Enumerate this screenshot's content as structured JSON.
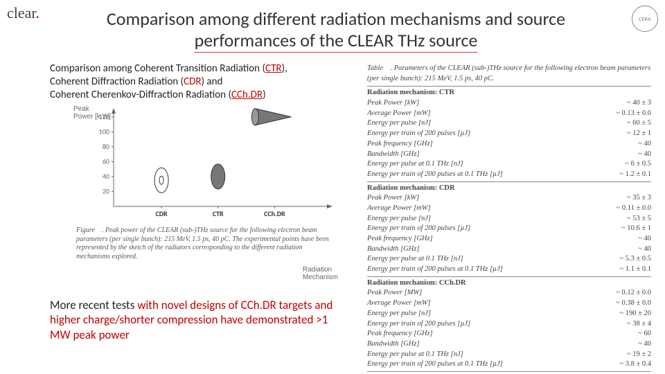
{
  "logos": {
    "clear": "clear",
    "cern": "CERN"
  },
  "title_l1": "Comparison among different radiation mechanisms and source",
  "title_l2": "performances of the CLEAR THz source",
  "desc": {
    "p1a": "Comparison among Coherent Transition Radiation (",
    "p1b": "CTR",
    "p1c": "),",
    "p2a": "Coherent Diffraction Radiation (",
    "p2b": "CDR",
    "p2c": ") and",
    "p3a": "Coherent Cherenkov-Diffraction Radiation (",
    "p3b": "CCh.DR",
    "p3c": ")"
  },
  "chart": {
    "type": "categorical-marker",
    "yaxis_label": "Peak\nPower [k.W]",
    "xaxis_label": "Radiation\nMechanism",
    "categories": [
      "CDR",
      "CTR",
      "CCh.DR"
    ],
    "yticks": [
      20,
      40,
      60,
      80,
      100,
      120
    ],
    "ylim": [
      0,
      130
    ],
    "values": [
      35,
      40,
      120
    ],
    "errors": [
      3,
      3,
      3
    ],
    "marker_color": "#777",
    "marker_edge": "#333",
    "axis_color": "#666",
    "grid_color": "#ddd",
    "text_color": "#666",
    "tick_fontsize": 10
  },
  "chart_caption": "Figure . Peak power of the CLEAR (sub-)THz source for the following electron beam parameters (per single bunch): 215 MeV, 1.5 ps, 40 pC. The experimental points have been represented by the sketch of the radiators corresponding to the different radiation mechanisms explored.",
  "note": {
    "a": "More recent tests ",
    "b": "with novel designs of CCh.DR targets and higher charge/shorter compression have demonstrated >1 MW peak power"
  },
  "table": {
    "caption": "Table . Parameters of the CLEAR (sub-)THz source for the following electron beam parameters (per single bunch): 215 MeV, 1.5 ps, 40 pC.",
    "sections": [
      {
        "head": "Radiation mechanism: CTR",
        "rows": [
          {
            "l": "Peak Power [kW]",
            "r": "~ 40 ± 3"
          },
          {
            "l": "Average Power [mW]",
            "r": "~ 0.13 ± 0.0"
          },
          {
            "l": "Energy per pulse [nJ]",
            "r": "~ 60 ± 5"
          },
          {
            "l": "Energy per train of 200 pulses [µJ]",
            "r": "~ 12 ± 1"
          },
          {
            "l": "Peak frequency [GHz]",
            "r": "~ 40"
          },
          {
            "l": "Bandwidth [GHz]",
            "r": "~ 40"
          },
          {
            "l": "Energy per pulse at 0.1 THz [nJ]",
            "r": "~ 6 ± 0.5"
          },
          {
            "l": "Energy per train of 200 pulses at 0.1 THz [µJ]",
            "r": "~ 1.2 ± 0.1"
          }
        ]
      },
      {
        "head": "Radiation mechanism: CDR",
        "rows": [
          {
            "l": "Peak Power [kW]",
            "r": "~ 35 ± 3"
          },
          {
            "l": "Average Power [mW]",
            "r": "~ 0.11 ± 0.0"
          },
          {
            "l": "Energy per pulse [nJ]",
            "r": "~ 53 ± 5"
          },
          {
            "l": "Energy per train of 200 pulses [µJ]",
            "r": "~ 10.6 ± 1"
          },
          {
            "l": "Peak frequency [GHz]",
            "r": "~ 40"
          },
          {
            "l": "Bandwidth [GHz]",
            "r": "~ 40"
          },
          {
            "l": "Energy per pulse at 0.1 THz [nJ]",
            "r": "~ 5.3 ± 0.5"
          },
          {
            "l": "Energy per train of 200 pulses at 0.1 THz [µJ]",
            "r": "~ 1.1 ± 0.1"
          }
        ]
      },
      {
        "head": "Radiation mechanism: CCh.DR",
        "rows": [
          {
            "l": "Peak Power [MW]",
            "r": "~ 0.12 ± 0.0"
          },
          {
            "l": "Average Power [mW]",
            "r": "~ 0.38 ± 0.0"
          },
          {
            "l": "Energy per pulse [nJ]",
            "r": "~ 190 ± 20"
          },
          {
            "l": "Energy per train of 200 pulses [µJ]",
            "r": "~ 38 ± 4"
          },
          {
            "l": "Peak frequency [GHz]",
            "r": "~ 60"
          },
          {
            "l": "Bandwidth [GHz]",
            "r": "~ 40"
          },
          {
            "l": "Energy per pulse at 0.1 THz [nJ]",
            "r": "~ 19 ± 2"
          },
          {
            "l": "Energy per train of 200 pulses at 0.1 THz [µJ]",
            "r": "~ 3.8 ± 0.4"
          }
        ]
      }
    ]
  }
}
